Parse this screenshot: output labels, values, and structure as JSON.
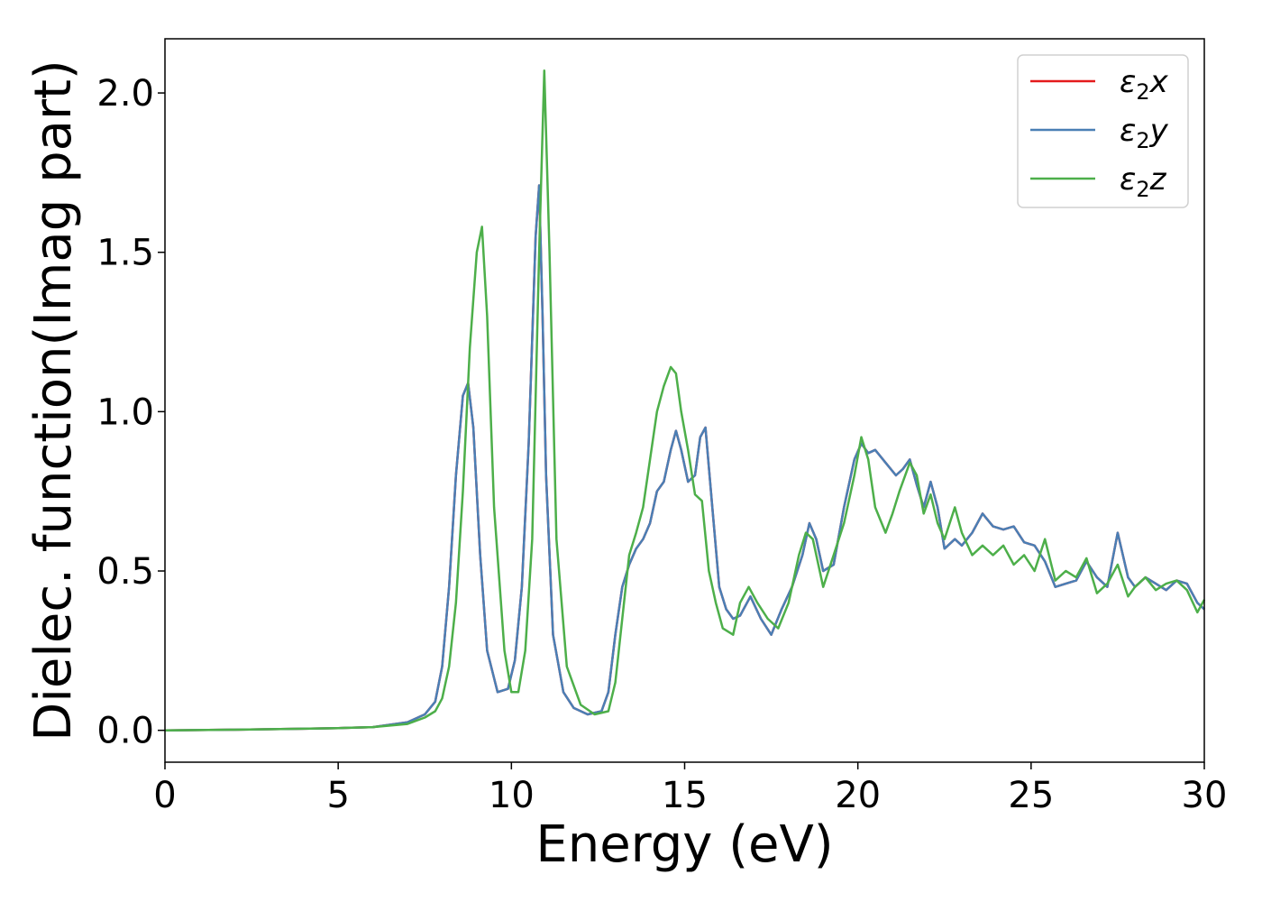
{
  "chart_data": {
    "type": "line",
    "title": "",
    "xlabel": "Energy (eV)",
    "ylabel": "Dielec. function(Imag part)",
    "xlim": [
      0,
      30
    ],
    "ylim": [
      -0.1,
      2.17
    ],
    "xticks": [
      "0",
      "5",
      "10",
      "15",
      "20",
      "25",
      "30"
    ],
    "yticks": [
      "0.0",
      "0.5",
      "1.0",
      "1.5",
      "2.0"
    ],
    "grid": false,
    "legend_position": "top-right",
    "series": [
      {
        "name": "ε2x",
        "legend_label": "ε",
        "legend_sub": "2",
        "legend_var": "x",
        "color": "#e41a1c",
        "x": [
          0,
          2,
          4,
          5,
          6,
          7,
          7.5,
          7.8,
          8.0,
          8.2,
          8.4,
          8.6,
          8.75,
          8.9,
          9.1,
          9.3,
          9.6,
          9.9,
          10.1,
          10.3,
          10.5,
          10.7,
          10.8,
          10.9,
          11.0,
          11.2,
          11.5,
          11.8,
          12.2,
          12.6,
          12.8,
          13.0,
          13.2,
          13.4,
          13.6,
          13.8,
          14.0,
          14.2,
          14.4,
          14.6,
          14.75,
          14.9,
          15.1,
          15.3,
          15.45,
          15.6,
          15.8,
          16.0,
          16.2,
          16.4,
          16.6,
          16.9,
          17.2,
          17.5,
          17.8,
          18.1,
          18.4,
          18.6,
          18.8,
          19.0,
          19.3,
          19.6,
          19.9,
          20.1,
          20.3,
          20.5,
          20.8,
          21.1,
          21.3,
          21.5,
          21.7,
          21.9,
          22.1,
          22.3,
          22.5,
          22.8,
          23.0,
          23.3,
          23.6,
          23.9,
          24.2,
          24.5,
          24.8,
          25.1,
          25.4,
          25.7,
          26.0,
          26.3,
          26.6,
          26.9,
          27.2,
          27.5,
          27.8,
          28.0,
          28.3,
          28.6,
          28.9,
          29.2,
          29.5,
          29.8,
          30
        ],
        "y": [
          0,
          0.002,
          0.005,
          0.007,
          0.01,
          0.025,
          0.05,
          0.09,
          0.2,
          0.45,
          0.8,
          1.05,
          1.09,
          0.95,
          0.55,
          0.25,
          0.12,
          0.13,
          0.22,
          0.45,
          0.9,
          1.55,
          1.71,
          1.3,
          0.8,
          0.3,
          0.12,
          0.07,
          0.05,
          0.06,
          0.12,
          0.3,
          0.45,
          0.52,
          0.57,
          0.6,
          0.65,
          0.75,
          0.78,
          0.88,
          0.94,
          0.88,
          0.78,
          0.8,
          0.92,
          0.95,
          0.7,
          0.45,
          0.38,
          0.35,
          0.36,
          0.42,
          0.35,
          0.3,
          0.38,
          0.45,
          0.55,
          0.65,
          0.6,
          0.5,
          0.52,
          0.7,
          0.85,
          0.9,
          0.87,
          0.88,
          0.84,
          0.8,
          0.82,
          0.85,
          0.77,
          0.7,
          0.78,
          0.7,
          0.57,
          0.6,
          0.58,
          0.62,
          0.68,
          0.64,
          0.63,
          0.64,
          0.59,
          0.58,
          0.53,
          0.45,
          0.46,
          0.47,
          0.53,
          0.48,
          0.45,
          0.62,
          0.48,
          0.45,
          0.48,
          0.46,
          0.44,
          0.47,
          0.46,
          0.4,
          0.38
        ]
      },
      {
        "name": "ε2y",
        "legend_label": "ε",
        "legend_sub": "2",
        "legend_var": "y",
        "color": "#4a7fb5",
        "x": [
          0,
          2,
          4,
          5,
          6,
          7,
          7.5,
          7.8,
          8.0,
          8.2,
          8.4,
          8.6,
          8.75,
          8.9,
          9.1,
          9.3,
          9.6,
          9.9,
          10.1,
          10.3,
          10.5,
          10.7,
          10.8,
          10.9,
          11.0,
          11.2,
          11.5,
          11.8,
          12.2,
          12.6,
          12.8,
          13.0,
          13.2,
          13.4,
          13.6,
          13.8,
          14.0,
          14.2,
          14.4,
          14.6,
          14.75,
          14.9,
          15.1,
          15.3,
          15.45,
          15.6,
          15.8,
          16.0,
          16.2,
          16.4,
          16.6,
          16.9,
          17.2,
          17.5,
          17.8,
          18.1,
          18.4,
          18.6,
          18.8,
          19.0,
          19.3,
          19.6,
          19.9,
          20.1,
          20.3,
          20.5,
          20.8,
          21.1,
          21.3,
          21.5,
          21.7,
          21.9,
          22.1,
          22.3,
          22.5,
          22.8,
          23.0,
          23.3,
          23.6,
          23.9,
          24.2,
          24.5,
          24.8,
          25.1,
          25.4,
          25.7,
          26.0,
          26.3,
          26.6,
          26.9,
          27.2,
          27.5,
          27.8,
          28.0,
          28.3,
          28.6,
          28.9,
          29.2,
          29.5,
          29.8,
          30
        ],
        "y": [
          0,
          0.002,
          0.005,
          0.007,
          0.01,
          0.025,
          0.05,
          0.09,
          0.2,
          0.45,
          0.8,
          1.05,
          1.09,
          0.95,
          0.55,
          0.25,
          0.12,
          0.13,
          0.22,
          0.45,
          0.9,
          1.55,
          1.71,
          1.3,
          0.8,
          0.3,
          0.12,
          0.07,
          0.05,
          0.06,
          0.12,
          0.3,
          0.45,
          0.52,
          0.57,
          0.6,
          0.65,
          0.75,
          0.78,
          0.88,
          0.94,
          0.88,
          0.78,
          0.8,
          0.92,
          0.95,
          0.7,
          0.45,
          0.38,
          0.35,
          0.36,
          0.42,
          0.35,
          0.3,
          0.38,
          0.45,
          0.55,
          0.65,
          0.6,
          0.5,
          0.52,
          0.7,
          0.85,
          0.9,
          0.87,
          0.88,
          0.84,
          0.8,
          0.82,
          0.85,
          0.77,
          0.7,
          0.78,
          0.7,
          0.57,
          0.6,
          0.58,
          0.62,
          0.68,
          0.64,
          0.63,
          0.64,
          0.59,
          0.58,
          0.53,
          0.45,
          0.46,
          0.47,
          0.53,
          0.48,
          0.45,
          0.62,
          0.48,
          0.45,
          0.48,
          0.46,
          0.44,
          0.47,
          0.46,
          0.4,
          0.38
        ]
      },
      {
        "name": "ε2z",
        "legend_label": "ε",
        "legend_sub": "2",
        "legend_var": "z",
        "color": "#4daf4a",
        "x": [
          0,
          2,
          4,
          5,
          6,
          7,
          7.5,
          7.8,
          8.0,
          8.2,
          8.4,
          8.6,
          8.8,
          9.0,
          9.15,
          9.3,
          9.5,
          9.8,
          10.0,
          10.2,
          10.4,
          10.6,
          10.8,
          10.95,
          11.1,
          11.3,
          11.6,
          12.0,
          12.4,
          12.8,
          13.0,
          13.2,
          13.4,
          13.6,
          13.8,
          14.0,
          14.2,
          14.4,
          14.6,
          14.75,
          14.9,
          15.1,
          15.3,
          15.5,
          15.7,
          15.9,
          16.1,
          16.4,
          16.6,
          16.85,
          17.1,
          17.4,
          17.7,
          18.0,
          18.3,
          18.5,
          18.7,
          19.0,
          19.3,
          19.6,
          19.9,
          20.1,
          20.3,
          20.5,
          20.8,
          21.0,
          21.2,
          21.5,
          21.7,
          21.9,
          22.1,
          22.3,
          22.5,
          22.8,
          23.0,
          23.3,
          23.6,
          23.9,
          24.2,
          24.5,
          24.8,
          25.1,
          25.4,
          25.7,
          26.0,
          26.3,
          26.6,
          26.9,
          27.2,
          27.5,
          27.8,
          28.0,
          28.3,
          28.6,
          28.9,
          29.2,
          29.5,
          29.8,
          30
        ],
        "y": [
          0,
          0.002,
          0.005,
          0.007,
          0.01,
          0.02,
          0.04,
          0.06,
          0.1,
          0.2,
          0.4,
          0.75,
          1.2,
          1.5,
          1.58,
          1.3,
          0.7,
          0.25,
          0.12,
          0.12,
          0.25,
          0.6,
          1.5,
          2.07,
          1.5,
          0.6,
          0.2,
          0.08,
          0.05,
          0.06,
          0.15,
          0.35,
          0.55,
          0.62,
          0.7,
          0.85,
          1.0,
          1.08,
          1.14,
          1.12,
          1.0,
          0.88,
          0.74,
          0.72,
          0.5,
          0.4,
          0.32,
          0.3,
          0.4,
          0.45,
          0.4,
          0.35,
          0.32,
          0.4,
          0.55,
          0.62,
          0.6,
          0.45,
          0.55,
          0.65,
          0.8,
          0.92,
          0.85,
          0.7,
          0.62,
          0.68,
          0.75,
          0.84,
          0.8,
          0.68,
          0.74,
          0.65,
          0.6,
          0.7,
          0.62,
          0.55,
          0.58,
          0.55,
          0.58,
          0.52,
          0.55,
          0.5,
          0.6,
          0.47,
          0.5,
          0.48,
          0.54,
          0.43,
          0.46,
          0.52,
          0.42,
          0.45,
          0.48,
          0.44,
          0.46,
          0.47,
          0.44,
          0.37,
          0.41
        ]
      }
    ]
  }
}
